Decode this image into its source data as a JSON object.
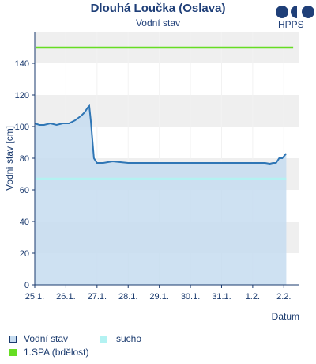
{
  "header": {
    "title": "Dlouhá Loučka (Oslava)",
    "subtitle": "Vodní stav",
    "logo_text": "HPPS"
  },
  "chart_data": {
    "type": "area",
    "title": "Dlouhá Loučka (Oslava)",
    "subtitle": "Vodní stav",
    "xlabel": "Datum",
    "ylabel": "Vodní stav [cm]",
    "ylim": [
      0,
      160
    ],
    "yticks": [
      0,
      20,
      40,
      60,
      80,
      100,
      120,
      140
    ],
    "xlim": [
      0,
      8.5
    ],
    "xtick_labels": [
      "25.1.",
      "26.1.",
      "27.1.",
      "28.1.",
      "29.1.",
      "30.1.",
      "31.1.",
      "1.2.",
      "2.2."
    ],
    "grid": true,
    "legend_position": "bottom",
    "series": [
      {
        "name": "Vodní stav",
        "color": "#2f76b5",
        "fill": "#c6dcf0",
        "x": [
          0,
          0.15,
          0.3,
          0.5,
          0.7,
          0.9,
          1.1,
          1.3,
          1.5,
          1.6,
          1.7,
          1.75,
          1.8,
          1.85,
          1.9,
          2.0,
          2.2,
          2.5,
          3.0,
          4.0,
          5.0,
          6.0,
          7.0,
          7.4,
          7.55,
          7.65,
          7.75,
          7.85,
          7.95,
          8.08
        ],
        "values": [
          102,
          101,
          101,
          102,
          101,
          102,
          102,
          104,
          107,
          109,
          112,
          113,
          104,
          92,
          80,
          77,
          77,
          78,
          77,
          77,
          77,
          77,
          77,
          77,
          76.5,
          77,
          77,
          80,
          80,
          83
        ]
      }
    ],
    "thresholds": [
      {
        "name": "sucho",
        "value": 67,
        "color": "#b3f2f2"
      },
      {
        "name": "1.SPA (bdělost)",
        "value": 150,
        "color": "#66dd22"
      }
    ]
  },
  "legend": {
    "items": [
      {
        "label": "Vodní stav",
        "color": "#c6dcf0",
        "border": "#1a3a6e"
      },
      {
        "label": "sucho",
        "color": "#b3f2f2"
      },
      {
        "label": "1.SPA (bdělost)",
        "color": "#66dd22"
      }
    ]
  }
}
